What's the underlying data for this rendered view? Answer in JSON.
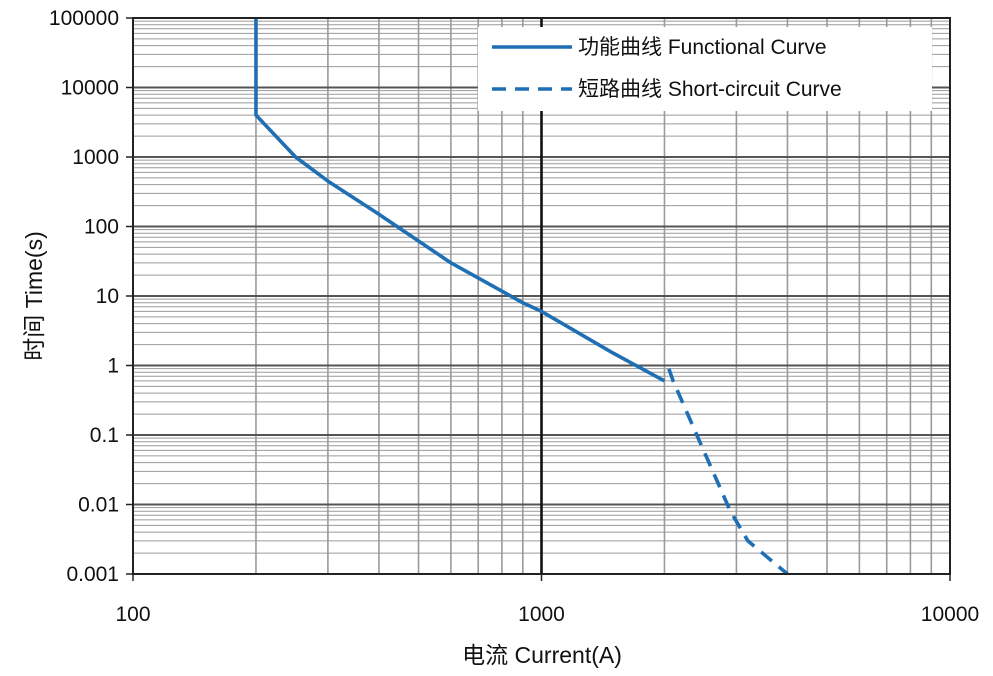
{
  "chart_data": {
    "type": "line",
    "title": "",
    "xlabel": "电流 Current(A)",
    "ylabel": "时间 Time(s)",
    "x_scale": "log",
    "y_scale": "log",
    "xlim": [
      100,
      10000
    ],
    "ylim": [
      0.001,
      100000
    ],
    "x_ticks": [
      100,
      1000,
      10000
    ],
    "x_tick_labels": [
      "100",
      "1000",
      "10000"
    ],
    "y_ticks": [
      0.001,
      0.01,
      0.1,
      1,
      10,
      100,
      1000,
      10000,
      100000
    ],
    "y_tick_labels": [
      "0.001",
      "0.01",
      "0.1",
      "1",
      "10",
      "100",
      "1000",
      "10000",
      "100000"
    ],
    "grid": true,
    "legend_position": "top-right",
    "series": [
      {
        "name": "功能曲线 Functional Curve",
        "style": "solid",
        "color": "#1f6fb5",
        "points": [
          [
            200,
            100000
          ],
          [
            200,
            4000
          ],
          [
            250,
            1000
          ],
          [
            300,
            450
          ],
          [
            400,
            150
          ],
          [
            600,
            30
          ],
          [
            900,
            8
          ],
          [
            1000,
            6
          ],
          [
            1500,
            1.5
          ],
          [
            2000,
            0.6
          ]
        ]
      },
      {
        "name": "短路曲线 Short-circuit Curve",
        "style": "dashed",
        "color": "#1f6fb5",
        "points": [
          [
            2050,
            0.9
          ],
          [
            2100,
            0.6
          ],
          [
            2400,
            0.1
          ],
          [
            2900,
            0.008
          ],
          [
            3200,
            0.003
          ],
          [
            4000,
            0.001
          ]
        ]
      }
    ]
  }
}
